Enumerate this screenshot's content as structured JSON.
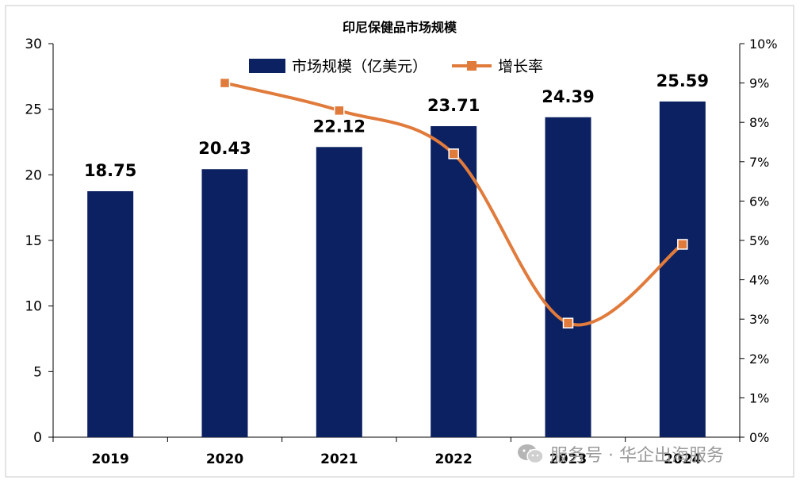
{
  "chart_data": {
    "type": "bar",
    "title": "印尼保健品市场规模",
    "categories": [
      "2019",
      "2020",
      "2021",
      "2022",
      "2023",
      "2024"
    ],
    "series": [
      {
        "name": "市场规模（亿美元）",
        "type": "bar",
        "axis": "left",
        "values": [
          18.75,
          20.43,
          22.12,
          23.71,
          24.39,
          25.59
        ],
        "data_labels": [
          "18.75",
          "20.43",
          "22.12",
          "23.71",
          "24.39",
          "25.59"
        ],
        "color": "#0c2161"
      },
      {
        "name": "增长率",
        "type": "line",
        "axis": "right",
        "values": [
          null,
          0.09,
          0.083,
          0.072,
          0.029,
          0.049
        ],
        "color": "#e07b3c"
      }
    ],
    "y_left": {
      "lim": [
        0,
        30
      ],
      "ticks": [
        0,
        5,
        10,
        15,
        20,
        25,
        30
      ],
      "tick_labels": [
        "0",
        "5",
        "10",
        "15",
        "20",
        "25",
        "30"
      ]
    },
    "y_right": {
      "lim": [
        0,
        0.1
      ],
      "ticks": [
        0,
        0.01,
        0.02,
        0.03,
        0.04,
        0.05,
        0.06,
        0.07,
        0.08,
        0.09,
        0.1
      ],
      "tick_labels": [
        "0%",
        "1%",
        "2%",
        "3%",
        "4%",
        "5%",
        "6%",
        "7%",
        "8%",
        "9%",
        "10%"
      ]
    },
    "legend": "top",
    "grid": false
  },
  "watermark": {
    "text": "服务号 · 华企出海服务",
    "icon": "wechat-icon"
  }
}
